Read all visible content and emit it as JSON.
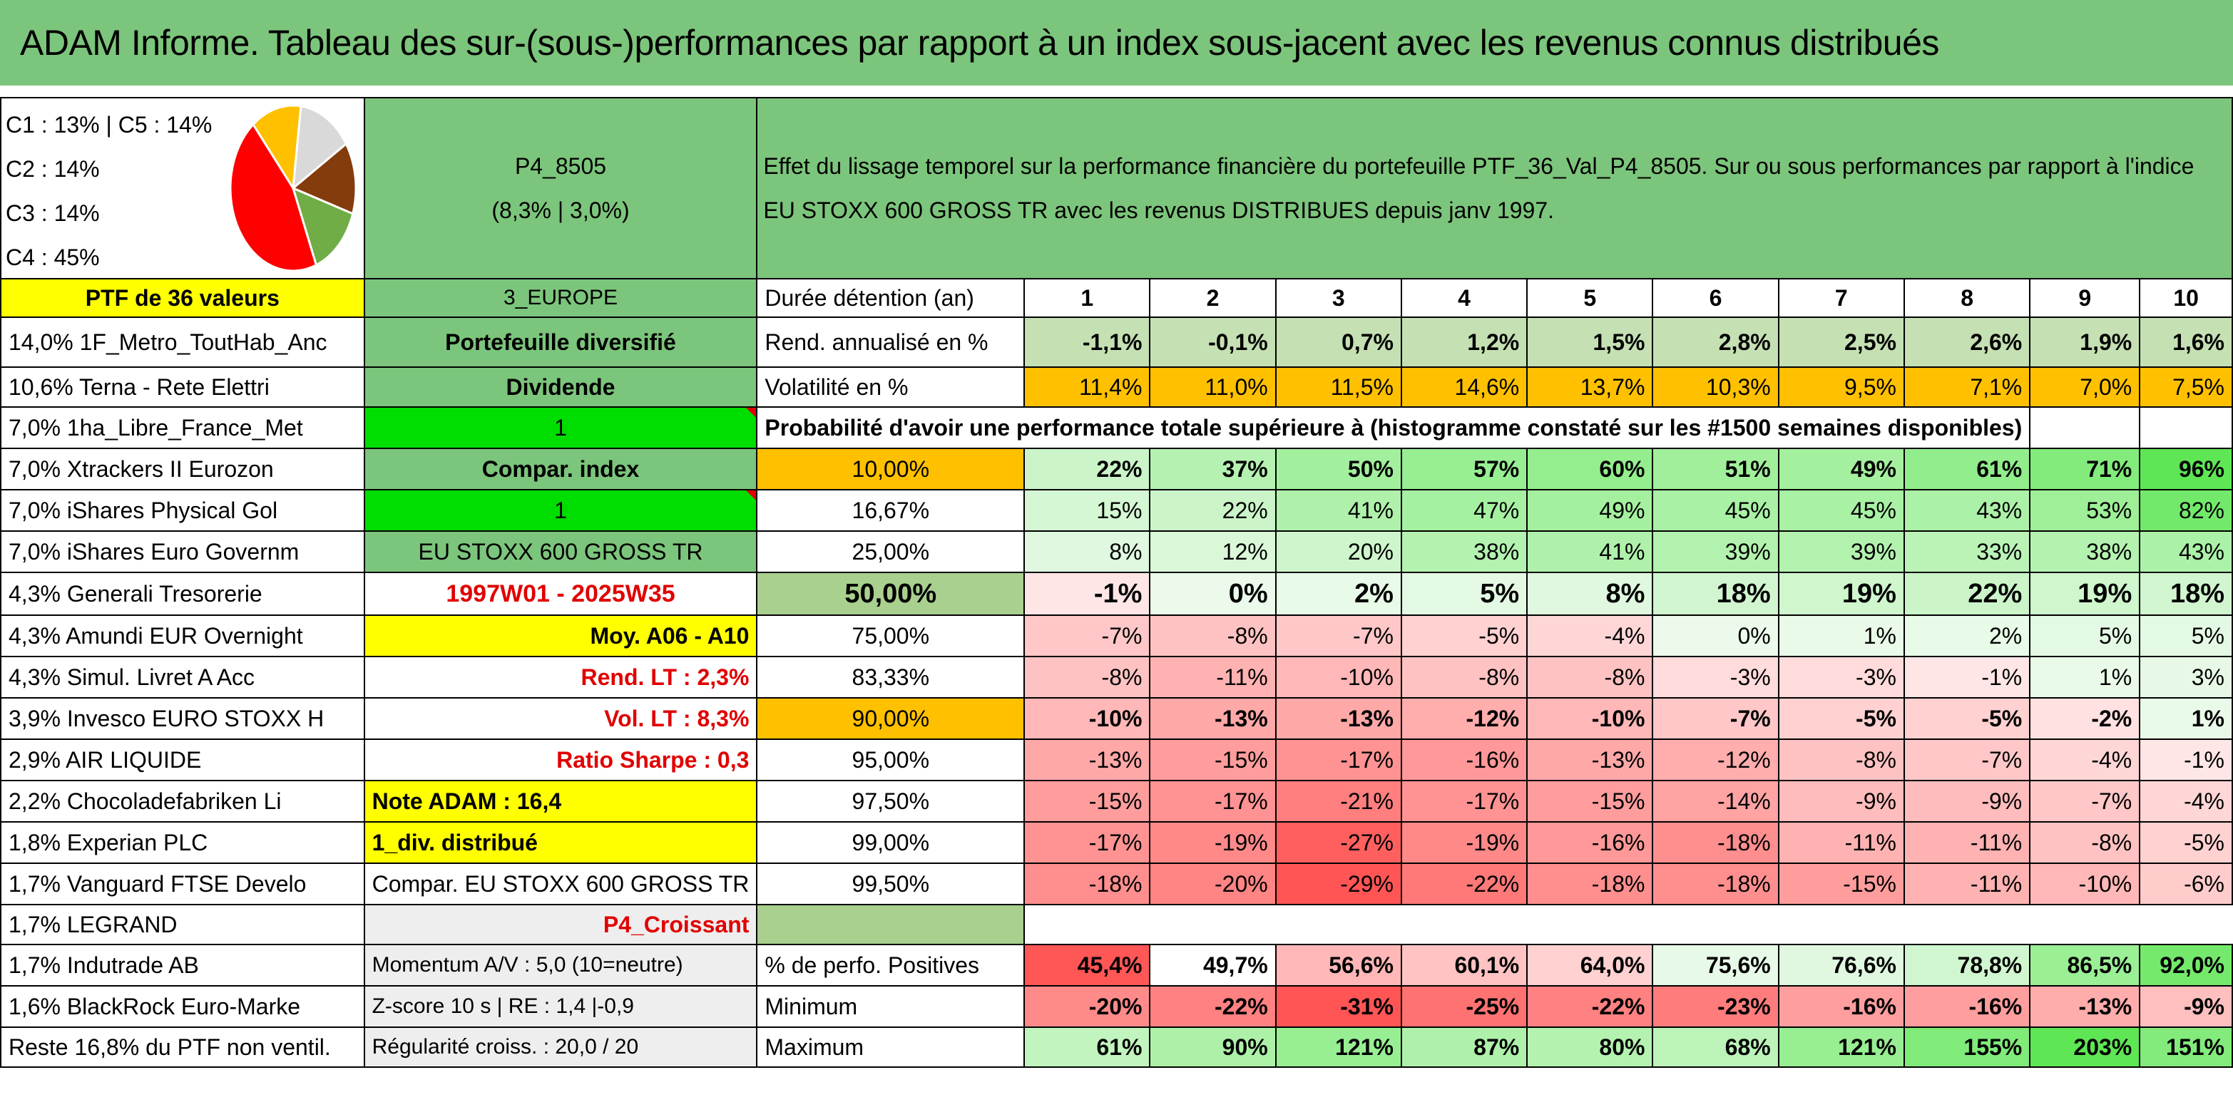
{
  "title": "ADAM Informe. Tableau des sur-(sous-)performances par rapport à un index sous-jacent avec les revenus connus distribués",
  "pie": {
    "labels": [
      "C1 : 13% | C5 : 14%",
      "C2 : 14%",
      "C3 : 14%",
      "C4 : 45%"
    ],
    "slices": [
      {
        "name": "C1",
        "value": 13,
        "color": "#ffc000"
      },
      {
        "name": "C5",
        "value": 14,
        "color": "#d9d9d9"
      },
      {
        "name": "C2",
        "value": 14,
        "color": "#843c0c"
      },
      {
        "name": "C3",
        "value": 14,
        "color": "#70ad47"
      },
      {
        "name": "C4",
        "value": 45,
        "color": "#ff0000"
      }
    ]
  },
  "portfolio": {
    "code": "P4_8505",
    "perf": "(8,3% | 3,0%)"
  },
  "description": "Effet du lissage temporel sur la performance financière du portefeuille PTF_36_Val_P4_8505. Sur ou sous performances par rapport à l'indice EU STOXX 600 GROSS TR avec les revenus DISTRIBUES depuis janv 1997.",
  "ptf_label": "PTF de 36 valeurs",
  "region": "3_EUROPE",
  "holdings": [
    "14,0% 1F_Metro_ToutHab_Anc",
    "10,6% Terna - Rete Elettri",
    "7,0% 1ha_Libre_France_Met",
    "7,0% Xtrackers II Eurozon",
    "7,0% iShares Physical Gol",
    "7,0% iShares Euro Governm",
    "4,3% Generali Tresorerie",
    "4,3% Amundi EUR Overnight",
    "4,3% Simul. Livret A Acc",
    "3,9% Invesco EURO STOXX H",
    "2,9% AIR LIQUIDE",
    "2,2% Chocoladefabriken Li",
    "1,8% Experian PLC",
    "1,7% Vanguard FTSE Develo",
    "1,7% LEGRAND",
    "1,7% Indutrade AB",
    "1,6% BlackRock Euro-Marke",
    "Reste 16,8% du PTF non ventil."
  ],
  "info": {
    "type": "Portefeuille diversifié",
    "income": "Dividende",
    "flag1": "1",
    "compar": "Compar. index",
    "flag2": "1",
    "index": "EU STOXX 600 GROSS TR",
    "period": "1997W01 - 2025W35",
    "avg": "Moy. A06 - A10",
    "rend_lt": "Rend. LT : 2,3%",
    "vol_lt": "Vol. LT : 8,3%",
    "sharpe": "Ratio Sharpe : 0,3",
    "note": "Note ADAM : 16,4",
    "div": "1_div. distribué",
    "compar2": "Compar. EU STOXX 600 GROSS TR",
    "trend": "P4_Croissant",
    "momentum": "Momentum A/V : 5,0 (10=neutre)",
    "zscore": "Z-score 10 s | RE : 1,4 |-0,9",
    "regularite": "Régularité croiss. : 20,0 / 20"
  },
  "years_label": "Durée détention (an)",
  "years": [
    "1",
    "2",
    "3",
    "4",
    "5",
    "6",
    "7",
    "8",
    "9",
    "10"
  ],
  "rend_label": "Rend. annualisé en %",
  "rend": [
    "-1,1%",
    "-0,1%",
    "0,7%",
    "1,2%",
    "1,5%",
    "2,8%",
    "2,5%",
    "2,6%",
    "1,9%",
    "1,6%"
  ],
  "vol_label": "Volatilité en %",
  "vol": [
    "11,4%",
    "11,0%",
    "11,5%",
    "14,6%",
    "13,7%",
    "10,3%",
    "9,5%",
    "7,1%",
    "7,0%",
    "7,5%"
  ],
  "prob_label": "Probabilité d'avoir une performance totale supérieure à (histogramme constaté sur les #1500 semaines disponibles)",
  "prob_rows": [
    {
      "p": "10,00%",
      "v": [
        "22%",
        "37%",
        "50%",
        "57%",
        "60%",
        "51%",
        "49%",
        "61%",
        "71%",
        "96%"
      ]
    },
    {
      "p": "16,67%",
      "v": [
        "15%",
        "22%",
        "41%",
        "47%",
        "49%",
        "45%",
        "45%",
        "43%",
        "53%",
        "82%"
      ]
    },
    {
      "p": "25,00%",
      "v": [
        "8%",
        "12%",
        "20%",
        "38%",
        "41%",
        "39%",
        "39%",
        "33%",
        "38%",
        "43%"
      ]
    },
    {
      "p": "50,00%",
      "v": [
        "-1%",
        "0%",
        "2%",
        "5%",
        "8%",
        "18%",
        "19%",
        "22%",
        "19%",
        "18%"
      ]
    },
    {
      "p": "75,00%",
      "v": [
        "-7%",
        "-8%",
        "-7%",
        "-5%",
        "-4%",
        "0%",
        "1%",
        "2%",
        "5%",
        "5%"
      ]
    },
    {
      "p": "83,33%",
      "v": [
        "-8%",
        "-11%",
        "-10%",
        "-8%",
        "-8%",
        "-3%",
        "-3%",
        "-1%",
        "1%",
        "3%"
      ]
    },
    {
      "p": "90,00%",
      "v": [
        "-10%",
        "-13%",
        "-13%",
        "-12%",
        "-10%",
        "-7%",
        "-5%",
        "-5%",
        "-2%",
        "1%"
      ]
    },
    {
      "p": "95,00%",
      "v": [
        "-13%",
        "-15%",
        "-17%",
        "-16%",
        "-13%",
        "-12%",
        "-8%",
        "-7%",
        "-4%",
        "-1%"
      ]
    },
    {
      "p": "97,50%",
      "v": [
        "-15%",
        "-17%",
        "-21%",
        "-17%",
        "-15%",
        "-14%",
        "-9%",
        "-9%",
        "-7%",
        "-4%"
      ]
    },
    {
      "p": "99,00%",
      "v": [
        "-17%",
        "-19%",
        "-27%",
        "-19%",
        "-16%",
        "-18%",
        "-11%",
        "-11%",
        "-8%",
        "-5%"
      ]
    },
    {
      "p": "99,50%",
      "v": [
        "-18%",
        "-20%",
        "-29%",
        "-22%",
        "-18%",
        "-18%",
        "-15%",
        "-11%",
        "-10%",
        "-6%"
      ]
    }
  ],
  "pos_label": "% de perfo. Positives",
  "pos": [
    "45,4%",
    "49,7%",
    "56,6%",
    "60,1%",
    "64,0%",
    "75,6%",
    "76,6%",
    "78,8%",
    "86,5%",
    "92,0%"
  ],
  "min_label": "Minimum",
  "min": [
    "-20%",
    "-22%",
    "-31%",
    "-25%",
    "-22%",
    "-23%",
    "-16%",
    "-16%",
    "-13%",
    "-9%"
  ],
  "max_label": "Maximum",
  "max": [
    "61%",
    "90%",
    "121%",
    "87%",
    "80%",
    "68%",
    "121%",
    "155%",
    "203%",
    "151%"
  ]
}
